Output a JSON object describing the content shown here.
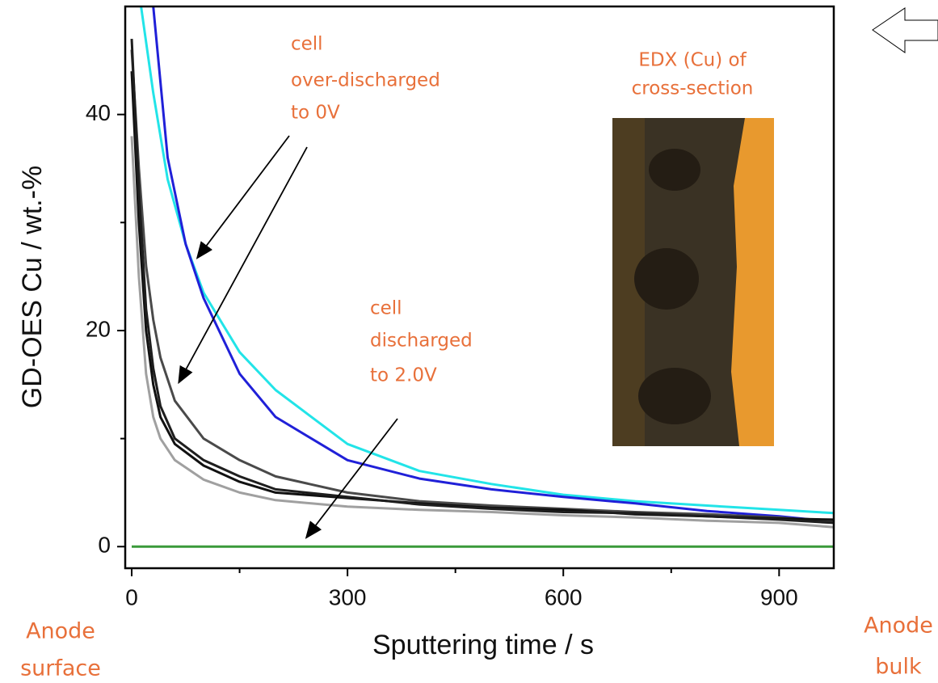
{
  "chart_data": {
    "type": "line",
    "x_label": "Sputtering time / s",
    "y_label": "GD-OES Cu / wt.-%",
    "xlim": [
      -9,
      976
    ],
    "ylim": [
      -2,
      50
    ],
    "xticks": [
      0,
      300,
      600,
      900
    ],
    "yticks": [
      0,
      20,
      40
    ],
    "x_minor_ticks": [
      150,
      450,
      750
    ],
    "y_minor_ticks": [
      10,
      30
    ],
    "series": [
      {
        "color": "#22e4e8",
        "x": [
          13,
          30,
          50,
          75,
          100,
          150,
          200,
          300,
          400,
          500,
          600,
          700,
          800,
          900,
          976
        ],
        "values": [
          50,
          42,
          34,
          28,
          23.5,
          18,
          14.5,
          9.5,
          7,
          5.8,
          4.8,
          4.2,
          3.8,
          3.4,
          3.1
        ]
      },
      {
        "color": "#2020d8",
        "x": [
          30,
          50,
          75,
          100,
          150,
          200,
          300,
          400,
          500,
          600,
          700,
          800,
          900,
          976
        ],
        "values": [
          50,
          36,
          28,
          23,
          16,
          12,
          8,
          6.3,
          5.3,
          4.6,
          4,
          3.3,
          2.8,
          2.3
        ]
      },
      {
        "color": "#4a4a4a",
        "x": [
          0,
          10,
          20,
          30,
          40,
          60,
          100,
          150,
          200,
          300,
          400,
          500,
          600,
          700,
          800,
          900,
          976
        ],
        "values": [
          46,
          35,
          26,
          21,
          17.5,
          13.5,
          10,
          8,
          6.5,
          5,
          4.2,
          3.8,
          3.5,
          3.2,
          3,
          2.7,
          2.3
        ]
      },
      {
        "color": "#111111",
        "x": [
          0,
          10,
          20,
          30,
          40,
          60,
          100,
          150,
          200,
          300,
          400,
          500,
          600,
          700,
          800,
          900,
          976
        ],
        "values": [
          44,
          30,
          20,
          15,
          12,
          9.5,
          7.5,
          6,
          5,
          4.5,
          4,
          3.6,
          3.4,
          3,
          2.8,
          2.6,
          2.5
        ]
      },
      {
        "color": "#1e1e1e",
        "x": [
          0,
          10,
          20,
          30,
          40,
          60,
          100,
          150,
          200,
          300,
          400,
          500,
          600,
          700,
          800,
          900,
          976
        ],
        "values": [
          47,
          33,
          22,
          16.5,
          13,
          10,
          8,
          6.5,
          5.3,
          4.6,
          3.9,
          3.5,
          3.2,
          3.1,
          2.8,
          2.5,
          2.2
        ]
      },
      {
        "color": "#a0a0a0",
        "x": [
          0,
          10,
          20,
          30,
          40,
          60,
          100,
          150,
          200,
          300,
          400,
          500,
          600,
          700,
          800,
          900,
          976
        ],
        "values": [
          38,
          25,
          16,
          12,
          10,
          8,
          6.2,
          5,
          4.3,
          3.7,
          3.4,
          3.2,
          2.9,
          2.7,
          2.4,
          2.2,
          1.8
        ]
      },
      {
        "color": "#3a9a3a",
        "x": [
          0,
          976
        ],
        "values": [
          0,
          0
        ]
      }
    ],
    "annotations": [
      [
        "cell",
        "over-discharged",
        "to 0V"
      ],
      [
        "EDX (Cu) of",
        "cross-section"
      ],
      [
        "cell",
        "discharged",
        "to 2.0V"
      ],
      [
        "Anode",
        "surface"
      ],
      [
        "Anode",
        "bulk"
      ]
    ]
  }
}
